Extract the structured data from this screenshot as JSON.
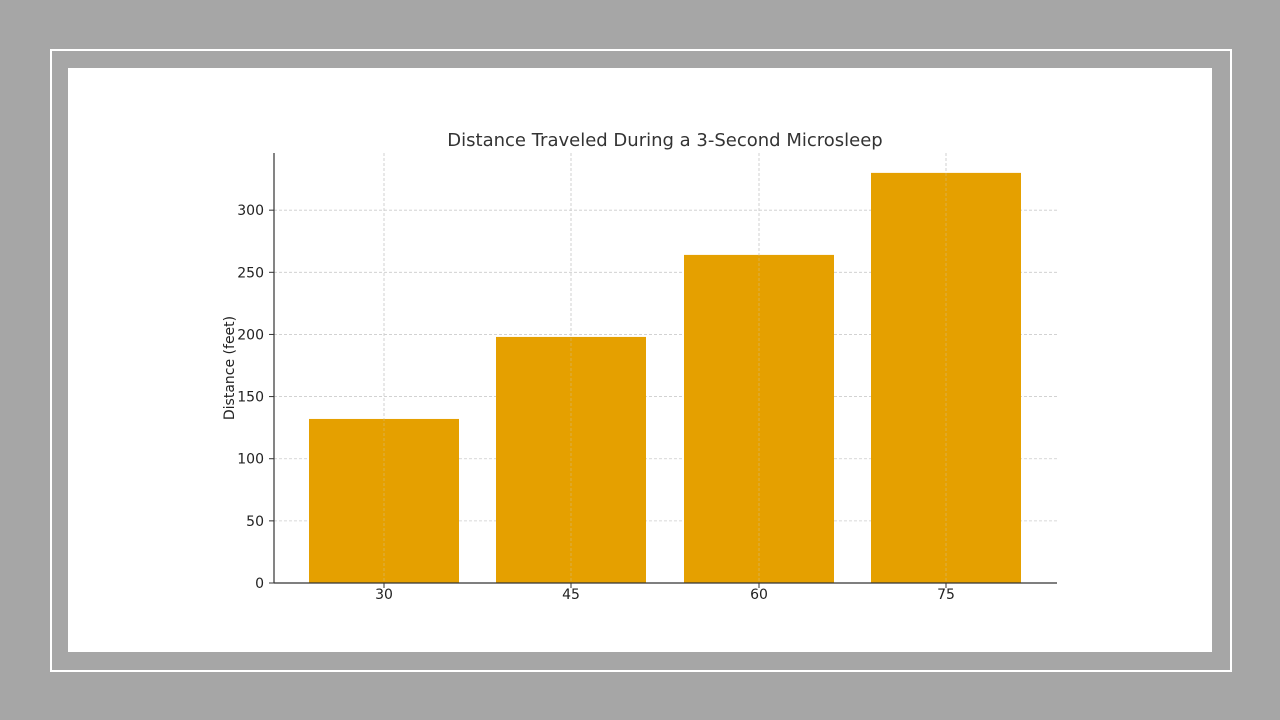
{
  "colors": {
    "background": "#a6a6a6",
    "panel": "#ffffff",
    "bar": "#e5a000",
    "grid": "#cccccc",
    "axis": "#333333"
  },
  "chart_data": {
    "type": "bar",
    "title": "Distance Traveled During a 3-Second Microsleep",
    "xlabel": "",
    "ylabel": "Distance (feet)",
    "categories": [
      "30",
      "45",
      "60",
      "75"
    ],
    "values": [
      132,
      198,
      264,
      330
    ],
    "ylim": [
      0,
      346
    ],
    "yticks": [
      0,
      50,
      100,
      150,
      200,
      250,
      300
    ],
    "grid": true,
    "legend": "none"
  }
}
